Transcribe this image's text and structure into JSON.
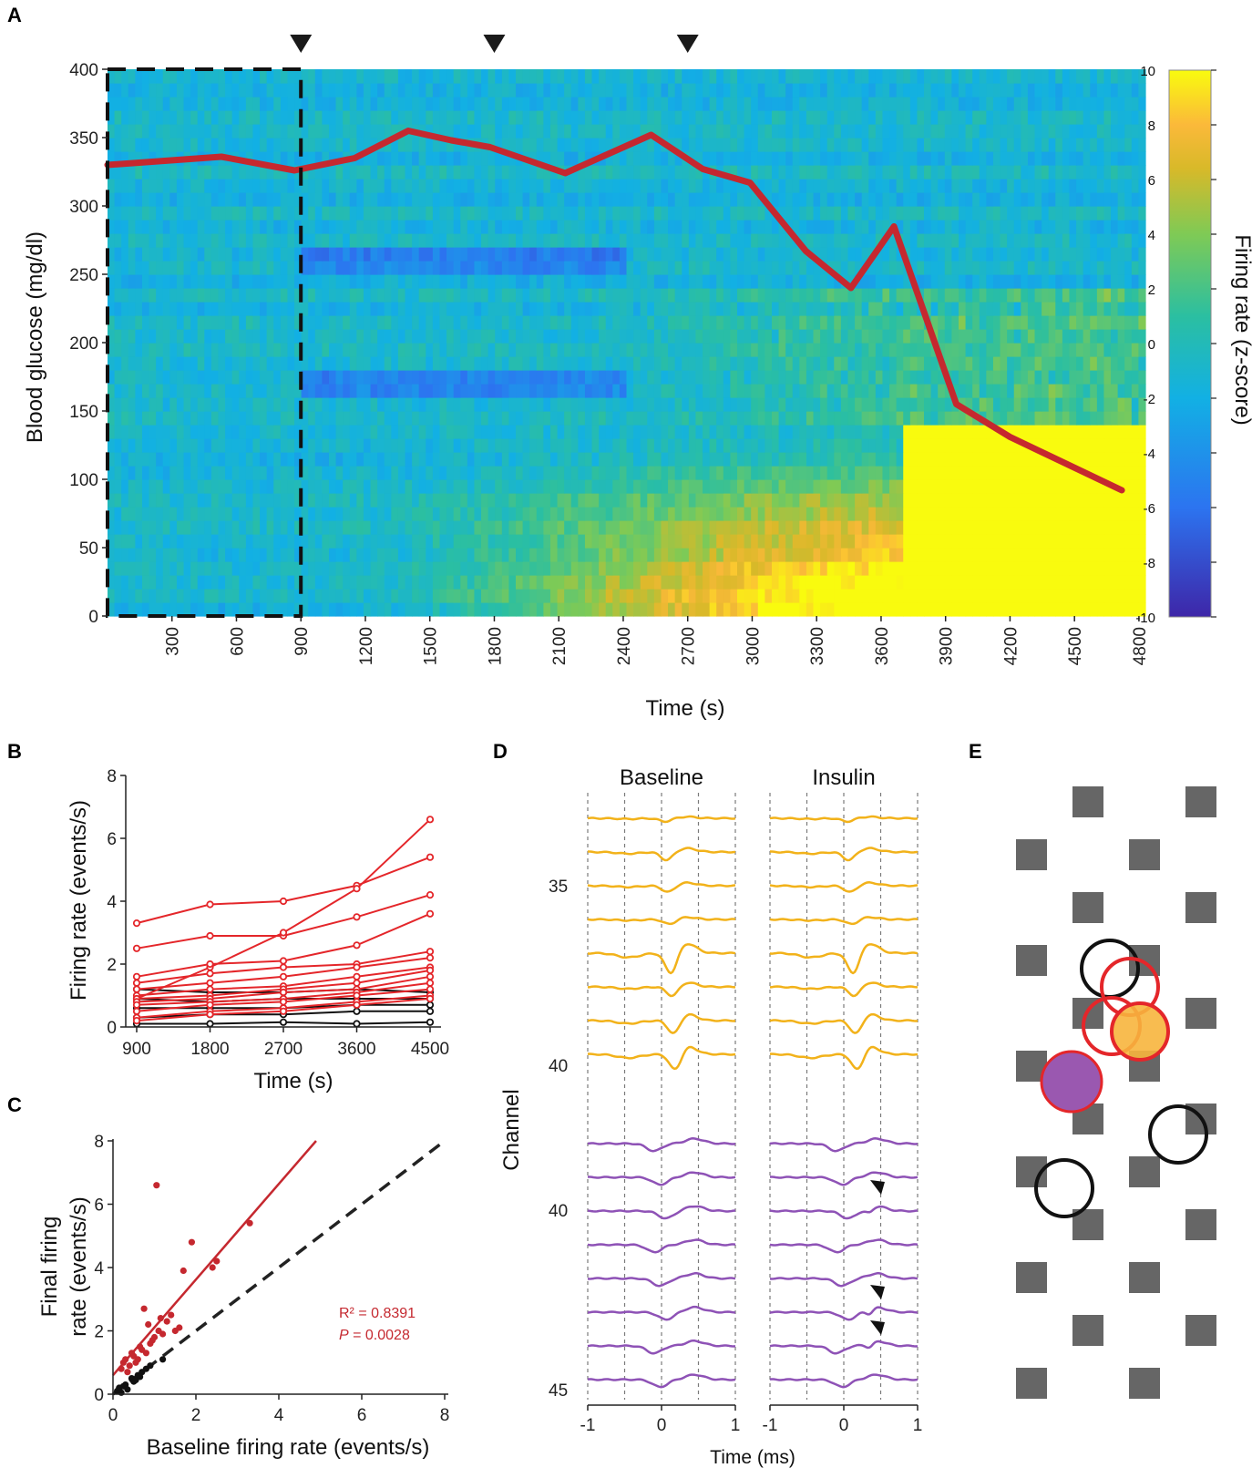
{
  "panel_labels": [
    "A",
    "B",
    "C",
    "D",
    "E"
  ],
  "chart_data": [
    {
      "panel": "A",
      "type": "heatmap",
      "xlabel": "Time (s)",
      "ylabel": "Blood glucose  (mg/dl)",
      "colorbar_label": "Firing rate (z-score)",
      "x_range": [
        0,
        4830
      ],
      "x_ticks": [
        300,
        600,
        900,
        1200,
        1500,
        1800,
        2100,
        2400,
        2700,
        3000,
        3300,
        3600,
        3900,
        4200,
        4500,
        4800
      ],
      "ylim": [
        0,
        400
      ],
      "y_ticks": [
        0,
        50,
        100,
        150,
        200,
        250,
        300,
        350,
        400
      ],
      "color_range": [
        -10,
        10
      ],
      "colorbar_ticks": [
        10,
        8,
        6,
        4,
        2,
        0,
        -2,
        -4,
        -6,
        -8,
        -10
      ],
      "baseline_box": [
        0,
        900
      ],
      "markers_s": [
        900,
        1800,
        2700
      ],
      "n_channels": 40,
      "glucose_line": {
        "x": [
          0,
          530,
          870,
          1150,
          1400,
          1600,
          1780,
          2130,
          2530,
          2770,
          2990,
          3250,
          3460,
          3660,
          3950,
          4200,
          4720
        ],
        "y": [
          330,
          336,
          326,
          335,
          355,
          348,
          343,
          324,
          352,
          327,
          317,
          267,
          240,
          285,
          155,
          131,
          92
        ]
      }
    },
    {
      "panel": "B",
      "type": "line",
      "xlabel": "Time (s)",
      "ylabel": "Firing rate (events/s)",
      "x": [
        900,
        1800,
        2700,
        3600,
        4500
      ],
      "ylim": [
        0,
        8
      ],
      "y_ticks": [
        0,
        2,
        4,
        6,
        8
      ],
      "series": [
        {
          "name": "red",
          "values": [
            3.3,
            3.9,
            4.0,
            4.5,
            5.4
          ]
        },
        {
          "name": "red",
          "values": [
            2.5,
            2.9,
            2.9,
            3.5,
            4.2
          ]
        },
        {
          "name": "red",
          "values": [
            0.9,
            1.9,
            3.0,
            4.4,
            6.6
          ]
        },
        {
          "name": "red",
          "values": [
            1.6,
            2.0,
            2.1,
            2.6,
            3.6
          ]
        },
        {
          "name": "red",
          "values": [
            1.4,
            1.7,
            1.9,
            2.0,
            2.4
          ]
        },
        {
          "name": "red",
          "values": [
            1.2,
            1.4,
            1.6,
            1.9,
            2.2
          ]
        },
        {
          "name": "red",
          "values": [
            1.0,
            1.2,
            1.3,
            1.6,
            1.9
          ]
        },
        {
          "name": "red",
          "values": [
            0.9,
            1.0,
            1.2,
            1.4,
            1.8
          ]
        },
        {
          "name": "red",
          "values": [
            0.8,
            0.9,
            1.1,
            1.2,
            1.6
          ]
        },
        {
          "name": "red",
          "values": [
            0.7,
            0.8,
            0.9,
            1.1,
            1.4
          ]
        },
        {
          "name": "red",
          "values": [
            0.5,
            0.7,
            0.8,
            1.0,
            1.2
          ]
        },
        {
          "name": "red",
          "values": [
            0.3,
            0.5,
            0.6,
            0.8,
            1.0
          ]
        },
        {
          "name": "red",
          "values": [
            0.2,
            0.4,
            0.5,
            0.7,
            0.9
          ]
        },
        {
          "name": "black",
          "values": [
            1.2,
            1.1,
            1.1,
            1.2,
            1.1
          ]
        },
        {
          "name": "black",
          "values": [
            0.9,
            0.8,
            0.9,
            0.9,
            0.9
          ]
        },
        {
          "name": "black",
          "values": [
            0.6,
            0.6,
            0.6,
            0.7,
            0.7
          ]
        },
        {
          "name": "black",
          "values": [
            0.3,
            0.4,
            0.4,
            0.5,
            0.5
          ]
        },
        {
          "name": "black",
          "values": [
            0.1,
            0.1,
            0.15,
            0.1,
            0.15
          ]
        }
      ]
    },
    {
      "panel": "C",
      "type": "scatter",
      "xlabel": "Baseline firing rate (events/s)",
      "ylabel_line1": "Final firing",
      "ylabel_line2": "rate (events/s)",
      "xlim": [
        0,
        8
      ],
      "ylim": [
        0,
        8
      ],
      "x_ticks": [
        0,
        2,
        4,
        6,
        8
      ],
      "y_ticks": [
        0,
        2,
        4,
        6,
        8
      ],
      "r2_text": "R² = 0.8391",
      "p_label": "P",
      "p_value": " = 0.0028",
      "fit_line": {
        "x": [
          0,
          4.9
        ],
        "y": [
          0.6,
          8.0
        ]
      },
      "identity_line": {
        "x": [
          0,
          8
        ],
        "y": [
          0,
          8
        ]
      },
      "red_points": {
        "x": [
          0.2,
          0.25,
          0.4,
          0.5,
          0.6,
          0.7,
          0.8,
          0.9,
          1.0,
          1.1,
          1.2,
          1.3,
          0.3,
          0.45,
          0.55,
          0.65,
          0.75,
          0.85,
          1.4,
          1.5,
          1.6,
          1.7,
          1.9,
          2.5,
          2.4,
          3.3,
          1.05,
          0.95,
          1.15,
          0.35
        ],
        "y": [
          0.8,
          1.0,
          0.9,
          1.2,
          1.1,
          1.4,
          1.3,
          1.6,
          1.8,
          2.0,
          1.9,
          2.3,
          1.1,
          1.3,
          1.0,
          1.5,
          2.7,
          2.2,
          2.5,
          2.0,
          2.1,
          3.9,
          4.8,
          4.2,
          4.0,
          5.4,
          6.6,
          1.7,
          2.4,
          0.7
        ]
      },
      "black_points": {
        "x": [
          0.1,
          0.15,
          0.2,
          0.3,
          0.35,
          0.45,
          0.5,
          0.6,
          0.7,
          0.8,
          0.9,
          1.2,
          0.25,
          0.55,
          0.65
        ],
        "y": [
          0.1,
          0.2,
          0.05,
          0.3,
          0.15,
          0.5,
          0.4,
          0.6,
          0.7,
          0.8,
          0.9,
          1.1,
          0.25,
          0.45,
          0.55
        ]
      }
    },
    {
      "panel": "D",
      "type": "line",
      "title_left": "Baseline",
      "title_right": "Insulin",
      "xlabel": "Time (ms)",
      "ylabel": "Channel",
      "x_ticks": [
        -1,
        0,
        1
      ],
      "channel_labels_top": [
        "35",
        "40"
      ],
      "channel_labels_bottom": [
        "40",
        "45"
      ],
      "yellow_color": "#f2b21a",
      "purple_color": "#8e52b6"
    }
  ],
  "probe_map": {
    "panel": "E",
    "pad_color": "#666666",
    "units": [
      {
        "style": "open-black"
      },
      {
        "style": "open-red"
      },
      {
        "style": "open-red"
      },
      {
        "style": "filled-orange"
      },
      {
        "style": "filled-purple"
      },
      {
        "style": "open-black"
      },
      {
        "style": "open-black"
      }
    ]
  }
}
